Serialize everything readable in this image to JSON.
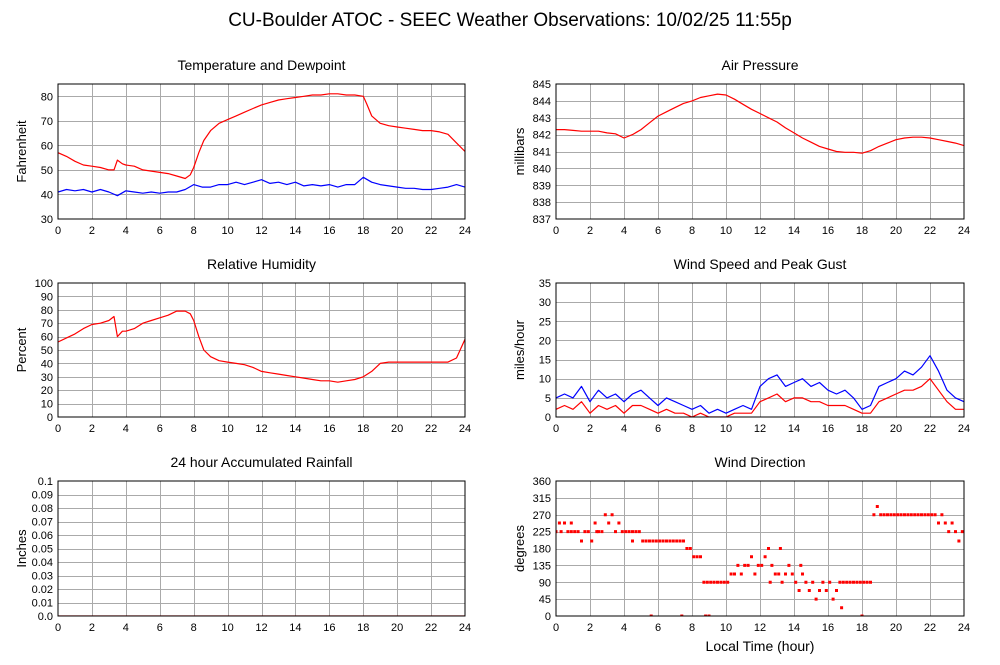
{
  "page": {
    "title": "CU-Boulder ATOC - SEEC Weather Observations: 10/02/25 11:55p",
    "x_axis_title": "Local Time (hour)"
  },
  "colors": {
    "red": "#ff0000",
    "blue": "#0000ff"
  },
  "chart_data": [
    {
      "id": "temp",
      "type": "line",
      "title": "Temperature and Dewpoint",
      "ylabel": "Fahrenheit",
      "xlim": [
        0,
        24
      ],
      "ylim": [
        30,
        85
      ],
      "yticks": [
        30,
        40,
        50,
        60,
        70,
        80
      ],
      "xticks": [
        0,
        2,
        4,
        6,
        8,
        10,
        12,
        14,
        16,
        18,
        20,
        22,
        24
      ],
      "grid": true,
      "series": [
        {
          "color": "red",
          "x": [
            0,
            0.5,
            1,
            1.5,
            2,
            2.5,
            3,
            3.3,
            3.5,
            3.8,
            4,
            4.5,
            5,
            5.5,
            6,
            6.5,
            7,
            7.5,
            7.8,
            8,
            8.3,
            8.6,
            9,
            9.5,
            10,
            10.5,
            11,
            11.5,
            12,
            12.5,
            13,
            13.5,
            14,
            14.5,
            15,
            15.5,
            16,
            16.5,
            17,
            17.5,
            18,
            18.2,
            18.5,
            19,
            19.5,
            20,
            20.5,
            21,
            21.5,
            22,
            22.5,
            23,
            23.5,
            24
          ],
          "y": [
            57,
            55.5,
            53.5,
            52,
            51.5,
            51,
            50,
            50,
            54,
            52.5,
            52,
            51.5,
            50,
            49.5,
            49,
            48.5,
            47.5,
            46.5,
            48,
            51,
            57,
            62,
            66,
            69,
            70.5,
            72,
            73.5,
            75,
            76.5,
            77.5,
            78.5,
            79,
            79.5,
            80,
            80.5,
            80.5,
            81,
            81,
            80.5,
            80.5,
            80,
            77,
            72,
            69,
            68,
            67.5,
            67,
            66.5,
            66,
            66,
            65.5,
            64.5,
            61,
            57.5
          ]
        },
        {
          "color": "blue",
          "x": [
            0,
            0.5,
            1,
            1.5,
            2,
            2.5,
            3,
            3.5,
            4,
            4.5,
            5,
            5.5,
            6,
            6.5,
            7,
            7.5,
            8,
            8.5,
            9,
            9.5,
            10,
            10.5,
            11,
            11.5,
            12,
            12.5,
            13,
            13.5,
            14,
            14.5,
            15,
            15.5,
            16,
            16.5,
            17,
            17.5,
            18,
            18.5,
            19,
            19.5,
            20,
            20.5,
            21,
            21.5,
            22,
            22.5,
            23,
            23.5,
            24
          ],
          "y": [
            41,
            42,
            41.5,
            42,
            41,
            42,
            41,
            39.5,
            41.5,
            41,
            40.5,
            41,
            40.5,
            41,
            41,
            42,
            44,
            43,
            43,
            44,
            44,
            45,
            44,
            45,
            46,
            44.5,
            45,
            44,
            45,
            43.5,
            44,
            43.5,
            44,
            43,
            44,
            44,
            47,
            45,
            44,
            43.5,
            43,
            42.5,
            42.5,
            42,
            42,
            42.5,
            43,
            44,
            43
          ]
        }
      ]
    },
    {
      "id": "pressure",
      "type": "line",
      "title": "Air Pressure",
      "ylabel": "millibars",
      "xlim": [
        0,
        24
      ],
      "ylim": [
        837,
        845
      ],
      "yticks": [
        837,
        838,
        839,
        840,
        841,
        842,
        843,
        844,
        845
      ],
      "xticks": [
        0,
        2,
        4,
        6,
        8,
        10,
        12,
        14,
        16,
        18,
        20,
        22,
        24
      ],
      "grid": true,
      "series": [
        {
          "color": "red",
          "x": [
            0,
            0.5,
            1,
            1.5,
            2,
            2.5,
            3,
            3.5,
            4,
            4.5,
            5,
            5.5,
            6,
            6.5,
            7,
            7.5,
            8,
            8.5,
            9,
            9.5,
            10,
            10.5,
            11,
            11.5,
            12,
            12.5,
            13,
            13.5,
            14,
            14.5,
            15,
            15.5,
            16,
            16.5,
            17,
            17.5,
            18,
            18.5,
            19,
            19.5,
            20,
            20.5,
            21,
            21.5,
            22,
            22.5,
            23,
            23.5,
            24
          ],
          "y": [
            842.3,
            842.3,
            842.25,
            842.2,
            842.2,
            842.2,
            842.1,
            842.05,
            841.8,
            842,
            842.3,
            842.7,
            843.1,
            843.35,
            843.6,
            843.85,
            844,
            844.2,
            844.3,
            844.4,
            844.35,
            844.1,
            843.8,
            843.5,
            843.25,
            843,
            842.75,
            842.4,
            842.1,
            841.8,
            841.55,
            841.3,
            841.15,
            841,
            840.95,
            840.95,
            840.9,
            841.05,
            841.3,
            841.5,
            841.7,
            841.8,
            841.85,
            841.85,
            841.8,
            841.7,
            841.6,
            841.5,
            841.35
          ]
        }
      ]
    },
    {
      "id": "humidity",
      "type": "line",
      "title": "Relative Humidity",
      "ylabel": "Percent",
      "xlim": [
        0,
        24
      ],
      "ylim": [
        0,
        100
      ],
      "yticks": [
        0,
        10,
        20,
        30,
        40,
        50,
        60,
        70,
        80,
        90,
        100
      ],
      "xticks": [
        0,
        2,
        4,
        6,
        8,
        10,
        12,
        14,
        16,
        18,
        20,
        22,
        24
      ],
      "grid": true,
      "series": [
        {
          "color": "red",
          "x": [
            0,
            0.5,
            1,
            1.5,
            2,
            2.5,
            3,
            3.3,
            3.5,
            3.8,
            4,
            4.5,
            5,
            5.5,
            6,
            6.5,
            7,
            7.5,
            7.8,
            8,
            8.3,
            8.6,
            9,
            9.5,
            10,
            10.5,
            11,
            11.5,
            12,
            12.5,
            13,
            13.5,
            14,
            14.5,
            15,
            15.5,
            16,
            16.5,
            17,
            17.5,
            18,
            18.5,
            19,
            19.5,
            20,
            20.5,
            21,
            21.5,
            22,
            22.5,
            23,
            23.5,
            24
          ],
          "y": [
            56,
            59,
            62,
            66,
            69,
            70,
            72,
            75,
            60,
            64,
            64,
            66,
            70,
            72,
            74,
            76,
            79,
            79,
            77,
            72,
            60,
            50,
            45,
            42,
            41,
            40,
            39,
            37,
            34,
            33,
            32,
            31,
            30,
            29,
            28,
            27,
            27,
            26,
            27,
            28,
            30,
            34,
            40,
            41,
            41,
            41,
            41,
            41,
            41,
            41,
            41,
            44,
            58
          ]
        }
      ]
    },
    {
      "id": "wind",
      "type": "line",
      "title": "Wind Speed and Peak Gust",
      "ylabel": "miles/hour",
      "xlim": [
        0,
        24
      ],
      "ylim": [
        0,
        35
      ],
      "yticks": [
        0,
        5,
        10,
        15,
        20,
        25,
        30,
        35
      ],
      "xticks": [
        0,
        2,
        4,
        6,
        8,
        10,
        12,
        14,
        16,
        18,
        20,
        22,
        24
      ],
      "grid": true,
      "series": [
        {
          "color": "blue",
          "x": [
            0,
            0.5,
            1,
            1.5,
            2,
            2.5,
            3,
            3.5,
            4,
            4.5,
            5,
            5.5,
            6,
            6.5,
            7,
            7.5,
            8,
            8.5,
            9,
            9.5,
            10,
            10.5,
            11,
            11.5,
            12,
            12.5,
            13,
            13.5,
            14,
            14.5,
            15,
            15.5,
            16,
            16.5,
            17,
            17.5,
            18,
            18.5,
            19,
            19.5,
            20,
            20.5,
            21,
            21.5,
            22,
            22.5,
            23,
            23.5,
            24
          ],
          "y": [
            5,
            6,
            5,
            8,
            4,
            7,
            5,
            6,
            4,
            6,
            7,
            5,
            3,
            5,
            4,
            3,
            2,
            3,
            1,
            2,
            1,
            2,
            3,
            2,
            8,
            10,
            11,
            8,
            9,
            10,
            8,
            9,
            7,
            6,
            7,
            5,
            2,
            3,
            8,
            9,
            10,
            12,
            11,
            13,
            16,
            12,
            7,
            5,
            4
          ]
        },
        {
          "color": "red",
          "x": [
            0,
            0.5,
            1,
            1.5,
            2,
            2.5,
            3,
            3.5,
            4,
            4.5,
            5,
            5.5,
            6,
            6.5,
            7,
            7.5,
            8,
            8.5,
            9,
            9.5,
            10,
            10.5,
            11,
            11.5,
            12,
            12.5,
            13,
            13.5,
            14,
            14.5,
            15,
            15.5,
            16,
            16.5,
            17,
            17.5,
            18,
            18.5,
            19,
            19.5,
            20,
            20.5,
            21,
            21.5,
            22,
            22.5,
            23,
            23.5,
            24
          ],
          "y": [
            2,
            3,
            2,
            4,
            1,
            3,
            2,
            3,
            1,
            3,
            3,
            2,
            1,
            2,
            1,
            1,
            0,
            1,
            0,
            0,
            0,
            1,
            1,
            1,
            4,
            5,
            6,
            4,
            5,
            5,
            4,
            4,
            3,
            3,
            3,
            2,
            1,
            1,
            4,
            5,
            6,
            7,
            7,
            8,
            10,
            7,
            4,
            2,
            2
          ]
        }
      ]
    },
    {
      "id": "rain",
      "type": "line",
      "title": "24 hour Accumulated Rainfall",
      "ylabel": "Inches",
      "xlim": [
        0,
        24
      ],
      "ylim": [
        0,
        0.1
      ],
      "yticks": [
        0,
        0.01,
        0.02,
        0.03,
        0.04,
        0.05,
        0.06,
        0.07,
        0.08,
        0.09,
        0.1
      ],
      "ytick_labels": [
        "0.0",
        "0.01",
        "0.02",
        "0.03",
        "0.04",
        "0.05",
        "0.06",
        "0.07",
        "0.08",
        "0.09",
        "0.1"
      ],
      "xticks": [
        0,
        2,
        4,
        6,
        8,
        10,
        12,
        14,
        16,
        18,
        20,
        22,
        24
      ],
      "grid": true,
      "series": [
        {
          "color": "red",
          "x": [
            0,
            24
          ],
          "y": [
            0,
            0
          ]
        }
      ]
    },
    {
      "id": "direction",
      "type": "scatter",
      "title": "Wind Direction",
      "ylabel": "degrees",
      "xlim": [
        0,
        24
      ],
      "ylim": [
        0,
        360
      ],
      "yticks": [
        0,
        45,
        90,
        135,
        180,
        225,
        270,
        315,
        360
      ],
      "xticks": [
        0,
        2,
        4,
        6,
        8,
        10,
        12,
        14,
        16,
        18,
        20,
        22,
        24
      ],
      "grid": true,
      "series": [
        {
          "color": "red",
          "x": [
            0,
            0.2,
            0.3,
            0.5,
            0.7,
            0.9,
            1.1,
            1.3,
            1.5,
            1.7,
            1.9,
            2.1,
            2.3,
            2.5,
            2.7,
            2.9,
            3.1,
            3.3,
            3.5,
            3.7,
            3.9,
            4.1,
            4.3,
            4.5,
            4.7,
            4.9,
            5.1,
            5.3,
            5.5,
            5.7,
            5.9,
            6.1,
            6.3,
            6.5,
            6.7,
            6.9,
            7.1,
            7.3,
            7.5,
            7.7,
            7.9,
            8.1,
            8.3,
            8.5,
            8.7,
            8.9,
            9.1,
            9.3,
            9.5,
            9.7,
            9.9,
            10.1,
            10.3,
            10.5,
            10.7,
            10.9,
            11.1,
            11.3,
            11.5,
            11.7,
            11.9,
            12.1,
            12.3,
            12.5,
            12.7,
            12.9,
            13.1,
            13.3,
            13.5,
            13.7,
            13.9,
            14.1,
            14.3,
            14.5,
            14.7,
            14.9,
            15.1,
            15.3,
            15.5,
            15.7,
            15.9,
            16.1,
            16.3,
            16.5,
            16.7,
            16.9,
            17.1,
            17.3,
            17.5,
            17.7,
            17.9,
            18.1,
            18.3,
            18.5,
            18.7,
            18.9,
            19.1,
            19.3,
            19.5,
            19.7,
            19.9,
            20.1,
            20.3,
            20.5,
            20.7,
            20.9,
            21.1,
            21.3,
            21.5,
            21.7,
            21.9,
            22.1,
            22.3,
            22.5,
            22.7,
            22.9,
            23.1,
            23.3,
            23.5,
            23.7,
            23.9,
            5.6,
            7.4,
            8.8,
            9.0,
            18.0,
            0.9,
            2.4,
            4.5,
            12.6,
            13.2,
            14.4,
            16.8
          ],
          "y": [
            225,
            248,
            225,
            248,
            225,
            248,
            225,
            225,
            200,
            225,
            225,
            200,
            248,
            225,
            225,
            270,
            248,
            270,
            225,
            248,
            225,
            225,
            225,
            225,
            225,
            225,
            200,
            200,
            200,
            200,
            200,
            200,
            200,
            200,
            200,
            200,
            200,
            200,
            200,
            180,
            180,
            158,
            158,
            158,
            90,
            90,
            90,
            90,
            90,
            90,
            90,
            90,
            112,
            112,
            135,
            112,
            135,
            135,
            158,
            112,
            135,
            135,
            158,
            180,
            135,
            112,
            112,
            90,
            112,
            135,
            112,
            90,
            68,
            112,
            90,
            68,
            90,
            45,
            68,
            90,
            68,
            90,
            45,
            68,
            90,
            90,
            90,
            90,
            90,
            90,
            90,
            90,
            90,
            90,
            270,
            292,
            270,
            270,
            270,
            270,
            270,
            270,
            270,
            270,
            270,
            270,
            270,
            270,
            270,
            270,
            270,
            270,
            270,
            248,
            270,
            248,
            225,
            248,
            225,
            200,
            225,
            0,
            0,
            0,
            0,
            0,
            225,
            225,
            200,
            90,
            180,
            135,
            22
          ]
        }
      ]
    }
  ]
}
